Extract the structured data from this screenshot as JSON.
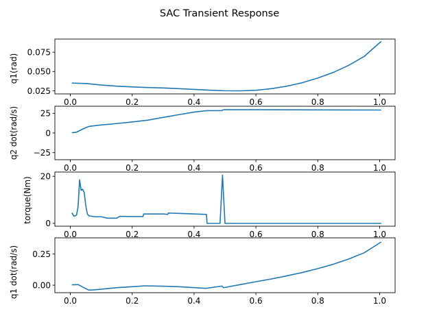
{
  "figure": {
    "title": "SAC Transient Response"
  },
  "chart_data": [
    {
      "type": "line",
      "ylabel": "q1(rad)",
      "xlim": [
        -0.05,
        1.05
      ],
      "ylim": [
        0.021,
        0.092
      ],
      "xticks": [
        0.0,
        0.2,
        0.4,
        0.6,
        0.8,
        1.0
      ],
      "yticks": [
        0.025,
        0.05,
        0.075
      ],
      "ytick_labels": [
        "0.025",
        "0.050",
        "0.075"
      ],
      "series": [
        {
          "color": "#1f77b4",
          "x": [
            0.005,
            0.05,
            0.1,
            0.15,
            0.2,
            0.25,
            0.3,
            0.35,
            0.4,
            0.45,
            0.5,
            0.55,
            0.6,
            0.65,
            0.7,
            0.75,
            0.8,
            0.85,
            0.9,
            0.95,
            1.005
          ],
          "y": [
            0.035,
            0.0345,
            0.0325,
            0.031,
            0.03,
            0.0293,
            0.0287,
            0.0278,
            0.0268,
            0.0258,
            0.0251,
            0.025,
            0.0257,
            0.0278,
            0.031,
            0.0355,
            0.0415,
            0.0488,
            0.058,
            0.0695,
            0.089
          ]
        }
      ]
    },
    {
      "type": "line",
      "ylabel": "q2 dot(rad/s)",
      "xlim": [
        -0.05,
        1.05
      ],
      "ylim": [
        -34,
        34
      ],
      "xticks": [
        0.0,
        0.2,
        0.4,
        0.6,
        0.8,
        1.0
      ],
      "yticks": [
        -25,
        0,
        25
      ],
      "ytick_labels": [
        "−25",
        "0",
        "25"
      ],
      "series": [
        {
          "color": "#1f77b4",
          "x": [
            0.005,
            0.02,
            0.04,
            0.06,
            0.08,
            0.1,
            0.15,
            0.2,
            0.25,
            0.3,
            0.35,
            0.4,
            0.44,
            0.49,
            0.495,
            0.6,
            0.8,
            1.005
          ],
          "y": [
            0.3,
            1,
            5,
            8.3,
            9.3,
            10.2,
            12,
            14,
            16.3,
            19.8,
            23.2,
            26.5,
            28.4,
            28.5,
            29.6,
            29.6,
            29.4,
            29.2
          ]
        }
      ]
    },
    {
      "type": "line",
      "ylabel": "torque(Nm)",
      "xlim": [
        -0.05,
        1.05
      ],
      "ylim": [
        -1.2,
        21.8
      ],
      "xticks": [
        0.0,
        0.2,
        0.4,
        0.6,
        0.8,
        1.0
      ],
      "yticks": [
        0,
        20
      ],
      "ytick_labels": [
        "0",
        "20"
      ],
      "series": [
        {
          "color": "#1f77b4",
          "x": [
            0.005,
            0.012,
            0.02,
            0.025,
            0.03,
            0.035,
            0.04,
            0.045,
            0.05,
            0.055,
            0.06,
            0.08,
            0.1,
            0.12,
            0.15,
            0.16,
            0.2,
            0.235,
            0.237,
            0.3,
            0.315,
            0.317,
            0.44,
            0.442,
            0.482,
            0.484,
            0.492,
            0.5,
            0.502,
            1.005
          ],
          "y": [
            4.5,
            3.0,
            3.5,
            7.0,
            18.5,
            14.0,
            14.5,
            13.0,
            7.5,
            4.0,
            3.2,
            2.8,
            2.8,
            2.2,
            2.2,
            3.0,
            2.9,
            2.9,
            4.0,
            4.0,
            3.8,
            4.4,
            3.8,
            0.0,
            0.0,
            0.0,
            20.5,
            0.0,
            0.0,
            0.0
          ]
        }
      ]
    },
    {
      "type": "line",
      "ylabel": "q1 dot(rad/s)",
      "xlim": [
        -0.05,
        1.05
      ],
      "ylim": [
        -0.06,
        0.38
      ],
      "xticks": [
        0.0,
        0.2,
        0.4,
        0.6,
        0.8,
        1.0
      ],
      "yticks": [
        0.0,
        0.25
      ],
      "ytick_labels": [
        "0.00",
        "0.25"
      ],
      "series": [
        {
          "color": "#1f77b4",
          "x": [
            0.005,
            0.025,
            0.04,
            0.06,
            0.08,
            0.1,
            0.15,
            0.2,
            0.24,
            0.3,
            0.35,
            0.44,
            0.49,
            0.495,
            0.55,
            0.6,
            0.65,
            0.7,
            0.75,
            0.8,
            0.85,
            0.9,
            0.95,
            1.005
          ],
          "y": [
            0.003,
            0.005,
            -0.015,
            -0.04,
            -0.037,
            -0.032,
            -0.02,
            -0.012,
            -0.005,
            -0.008,
            -0.012,
            -0.025,
            -0.007,
            -0.02,
            0.005,
            0.028,
            0.05,
            0.075,
            0.102,
            0.133,
            0.168,
            0.21,
            0.26,
            0.347
          ]
        }
      ]
    }
  ]
}
